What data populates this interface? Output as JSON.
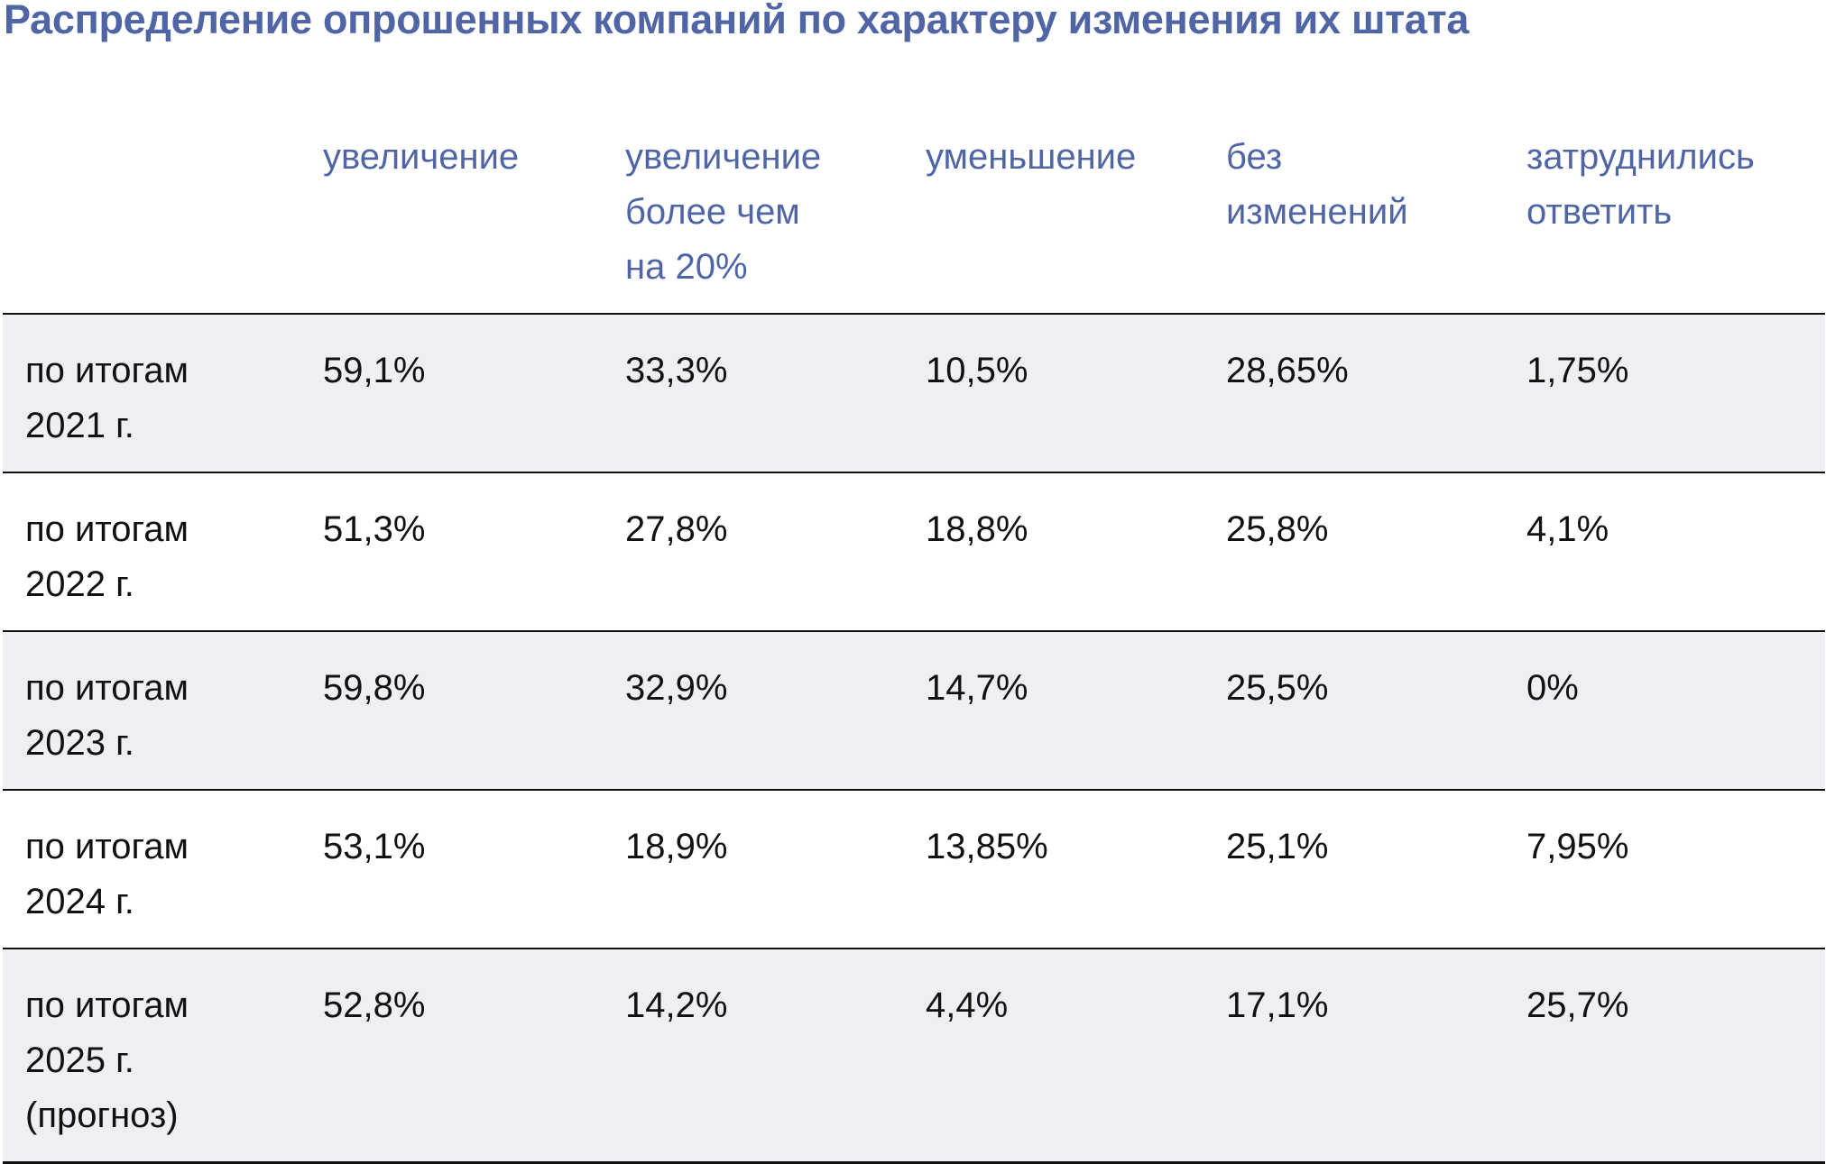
{
  "title": "Распределение опрошенных компаний по характеру изменения их штата",
  "table": {
    "headers": [
      "",
      "увеличение",
      "увеличение более чем на 20%",
      "уменьшение",
      "без изменений",
      "затруднились ответить"
    ],
    "rows": [
      {
        "label": "по итогам 2021 г.",
        "values": [
          "59,1%",
          "33,3%",
          "10,5%",
          "28,65%",
          "1,75%"
        ]
      },
      {
        "label": "по итогам 2022 г.",
        "values": [
          "51,3%",
          "27,8%",
          "18,8%",
          "25,8%",
          "4,1%"
        ]
      },
      {
        "label": "по итогам 2023 г.",
        "values": [
          "59,8%",
          "32,9%",
          "14,7%",
          "25,5%",
          "0%"
        ]
      },
      {
        "label": "по итогам 2024 г.",
        "values": [
          "53,1%",
          "18,9%",
          "13,85%",
          "25,1%",
          "7,95%"
        ]
      },
      {
        "label": "по итогам 2025 г. (прогноз)",
        "values": [
          "52,8%",
          "14,2%",
          "4,4%",
          "17,1%",
          "25,7%"
        ]
      }
    ]
  },
  "colors": {
    "header_text": "#5065a5",
    "band": "#eeeff3"
  }
}
